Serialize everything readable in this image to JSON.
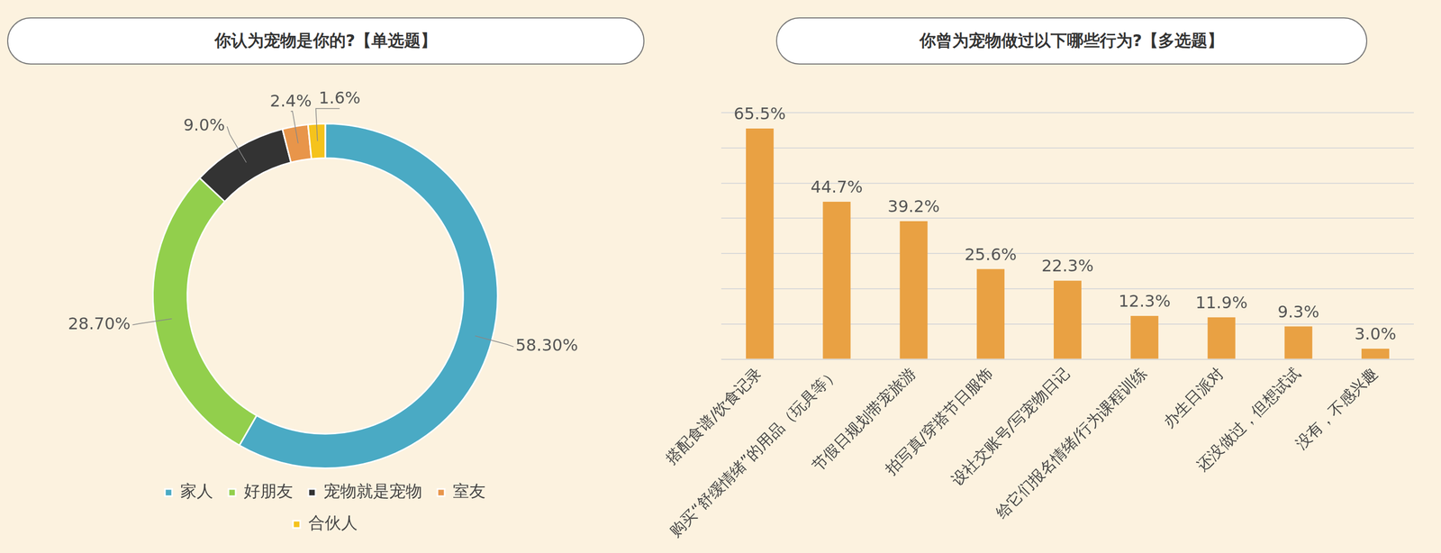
{
  "chart_data": [
    {
      "type": "doughnut",
      "title": "你认为宠物是你的?【单选题】",
      "categories": [
        "家人",
        "好朋友",
        "宠物就是宠物",
        "室友",
        "合伙人"
      ],
      "values": [
        58.3,
        28.7,
        9.0,
        2.4,
        1.6
      ],
      "value_labels": [
        "58.30%",
        "28.70%",
        "9.0%",
        "2.4%",
        "1.6%"
      ],
      "colors": [
        "#4aaac4",
        "#92cf4c",
        "#333333",
        "#e8954a",
        "#f5c31c"
      ],
      "data_labels": true,
      "legend": "bottom"
    },
    {
      "type": "bar",
      "title": "你曾为宠物做过以下哪些行为?【多选题】",
      "categories": [
        "搭配食谱/饮食记录",
        "购买“舒缓情绪”的用品（玩具等）",
        "节假日规划带宠旅游",
        "拍写真/穿搭节日服饰",
        "设社交账号/写宠物日记",
        "给它们报名情绪/行为课程训练",
        "办生日派对",
        "还没做过，但想试试",
        "没有，不感兴趣"
      ],
      "values": [
        65.5,
        44.7,
        39.2,
        25.6,
        22.3,
        12.3,
        11.9,
        9.3,
        3.0
      ],
      "value_labels": [
        "65.5%",
        "44.7%",
        "39.2%",
        "25.6%",
        "22.3%",
        "12.3%",
        "11.9%",
        "9.3%",
        "3.0%"
      ],
      "color": "#e9a143",
      "ylim": [
        0,
        70
      ],
      "yticks": [
        0,
        10,
        20,
        30,
        40,
        50,
        60,
        70
      ],
      "grid": true,
      "data_labels": true,
      "tick_labels": "x"
    }
  ]
}
